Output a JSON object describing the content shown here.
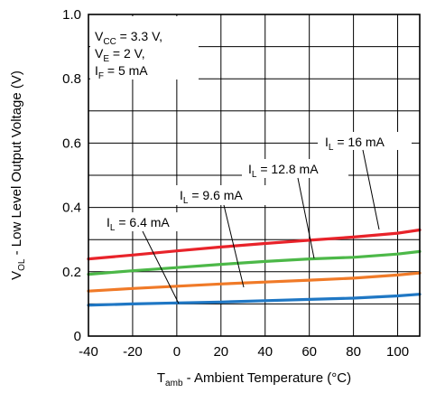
{
  "chart_data": {
    "type": "line",
    "title": "",
    "xlabel": {
      "main": "T",
      "sub": "amb",
      "rest": " - Ambient Temperature (°C)"
    },
    "ylabel": {
      "main": "V",
      "sub": "OL",
      "rest": " - Low Level Output Voltage (V)"
    },
    "xlim": [
      -40,
      110
    ],
    "ylim": [
      0,
      1.0
    ],
    "xticks": [
      -40,
      -20,
      0,
      20,
      40,
      60,
      80,
      100
    ],
    "xtick_labels": [
      "-40",
      "-20",
      "0",
      "20",
      "40",
      "60",
      "80",
      "100"
    ],
    "yticks": [
      0,
      0.2,
      0.4,
      0.6,
      0.8,
      1.0
    ],
    "ytick_labels": [
      "0",
      "0.2",
      "0.4",
      "0.6",
      "0.8",
      "1.0"
    ],
    "grid": true,
    "conditions": [
      {
        "main": "V",
        "sub": "CC",
        "rest": " = 3.3 V,"
      },
      {
        "main": "V",
        "sub": "E",
        "rest": " = 2 V,"
      },
      {
        "main": "I",
        "sub": "F",
        "rest": " = 5 mA"
      }
    ],
    "series": [
      {
        "name": "I_L = 6.4 mA",
        "label": {
          "main": "I",
          "sub": "L",
          "rest": " = 6.4 mA"
        },
        "color": "#1f77c4",
        "x": [
          -40,
          -20,
          0,
          20,
          40,
          60,
          80,
          100,
          110
        ],
        "y": [
          0.096,
          0.1,
          0.103,
          0.106,
          0.11,
          0.114,
          0.118,
          0.125,
          0.13
        ]
      },
      {
        "name": "I_L = 9.6 mA",
        "label": {
          "main": "I",
          "sub": "L",
          "rest": " = 9.6 mA"
        },
        "color": "#f07a28",
        "x": [
          -40,
          -20,
          0,
          20,
          40,
          60,
          80,
          100,
          110
        ],
        "y": [
          0.14,
          0.148,
          0.155,
          0.162,
          0.168,
          0.174,
          0.18,
          0.19,
          0.196
        ]
      },
      {
        "name": "I_L = 12.8 mA",
        "label": {
          "main": "I",
          "sub": "L",
          "rest": " = 12.8 mA"
        },
        "color": "#4cb848",
        "x": [
          -40,
          -20,
          0,
          20,
          40,
          60,
          80,
          100,
          110
        ],
        "y": [
          0.192,
          0.203,
          0.213,
          0.223,
          0.232,
          0.24,
          0.245,
          0.255,
          0.263
        ]
      },
      {
        "name": "I_L = 16 mA",
        "label": {
          "main": "I",
          "sub": "L",
          "rest": " = 16 mA"
        },
        "color": "#e8232a",
        "x": [
          -40,
          -20,
          0,
          20,
          40,
          60,
          80,
          100,
          110
        ],
        "y": [
          0.24,
          0.252,
          0.265,
          0.277,
          0.288,
          0.298,
          0.308,
          0.32,
          0.33
        ]
      }
    ]
  }
}
